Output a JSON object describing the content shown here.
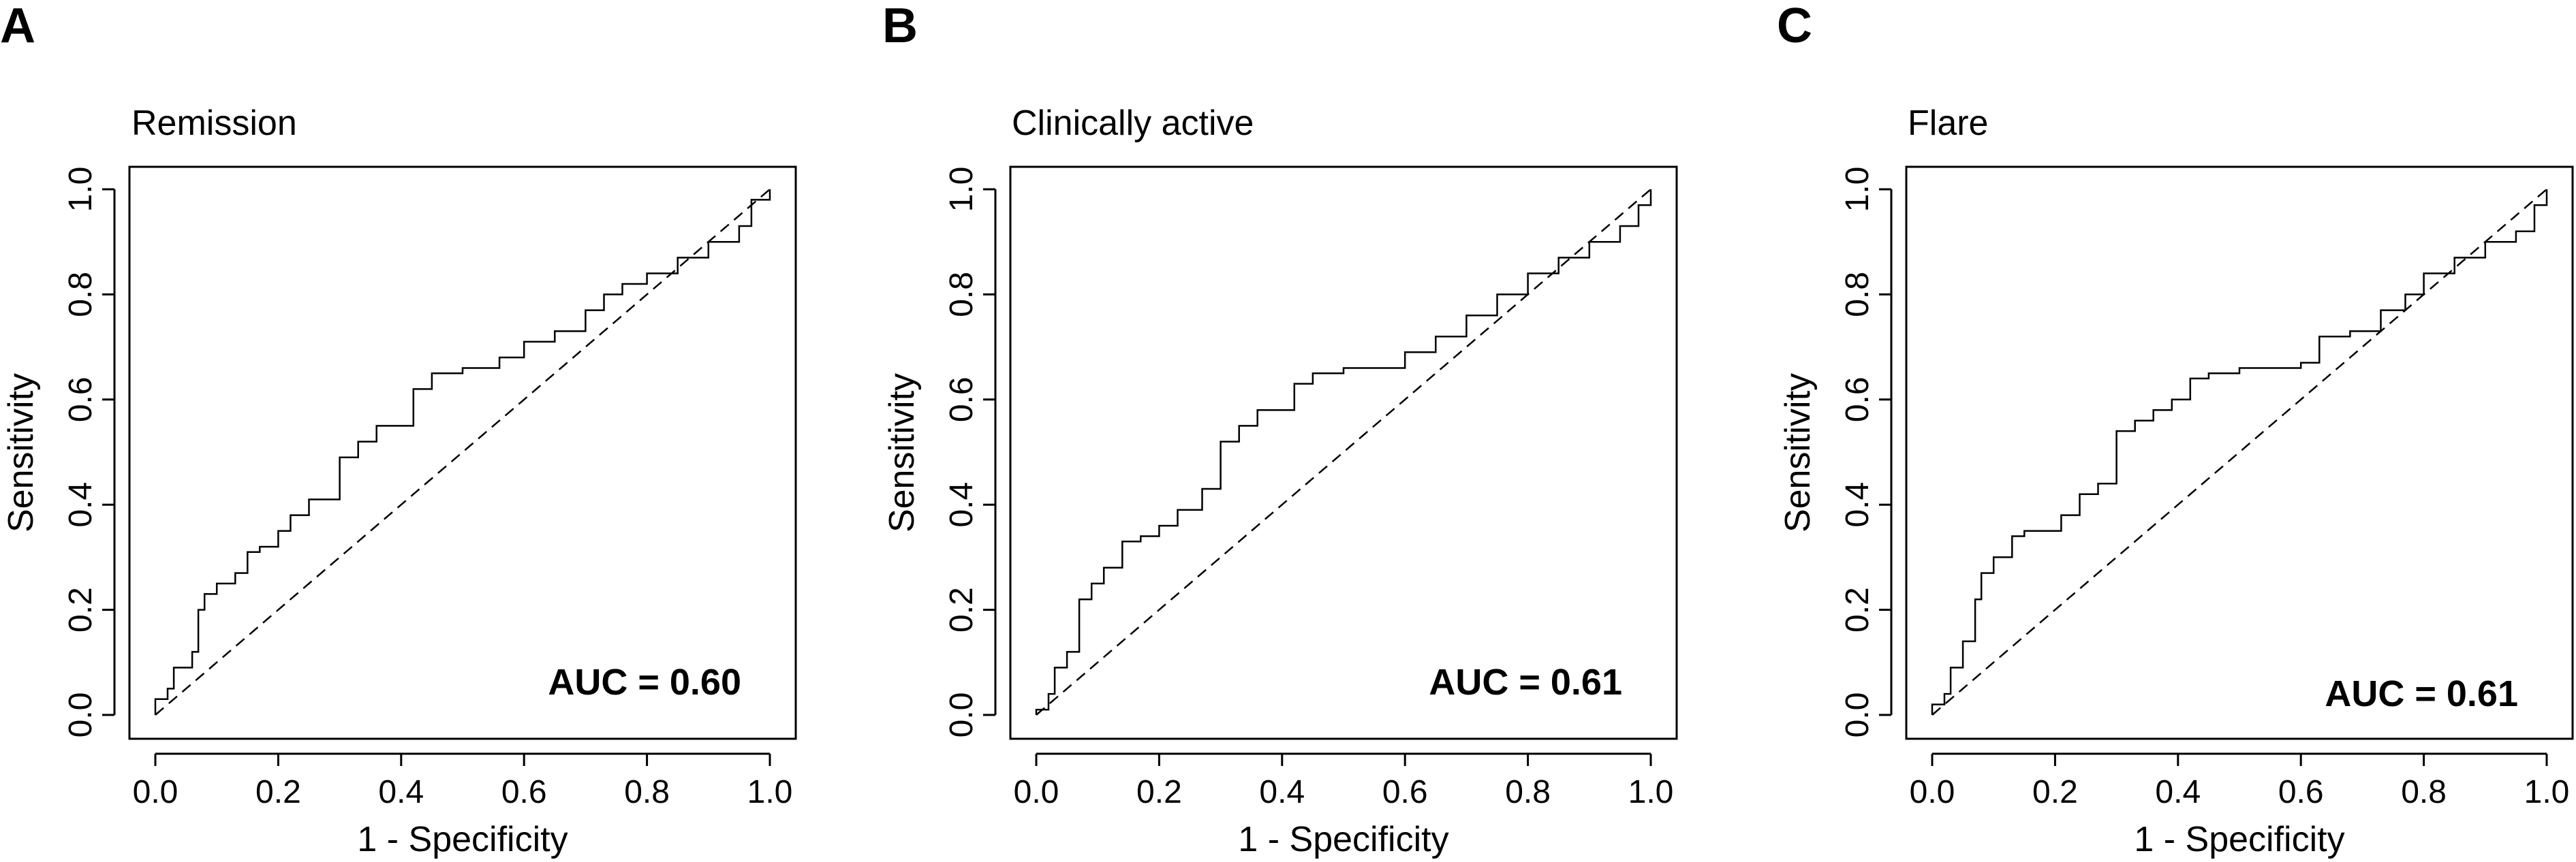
{
  "chart_data": [
    {
      "panel": "A",
      "type": "line",
      "title": "Remission",
      "xlabel": "1 - Specificity",
      "ylabel": "Sensitivity",
      "xlim": [
        0,
        1
      ],
      "ylim": [
        0,
        1
      ],
      "xticks": [
        "0.0",
        "0.2",
        "0.4",
        "0.6",
        "0.8",
        "1.0"
      ],
      "yticks": [
        "0.0",
        "0.2",
        "0.4",
        "0.6",
        "0.8",
        "1.0"
      ],
      "annotation": "AUC = 0.60",
      "reference_line": "diagonal-dashed",
      "x": [
        0.0,
        0.0,
        0.02,
        0.03,
        0.06,
        0.07,
        0.08,
        0.1,
        0.13,
        0.15,
        0.17,
        0.2,
        0.22,
        0.25,
        0.29,
        0.3,
        0.33,
        0.36,
        0.4,
        0.42,
        0.45,
        0.5,
        0.52,
        0.56,
        0.6,
        0.65,
        0.7,
        0.73,
        0.76,
        0.8,
        0.85,
        0.9,
        0.95,
        0.97,
        1.0
      ],
      "y": [
        0.0,
        0.03,
        0.05,
        0.09,
        0.12,
        0.2,
        0.23,
        0.25,
        0.27,
        0.31,
        0.32,
        0.35,
        0.38,
        0.41,
        0.41,
        0.49,
        0.52,
        0.55,
        0.55,
        0.62,
        0.65,
        0.66,
        0.66,
        0.68,
        0.71,
        0.73,
        0.77,
        0.8,
        0.82,
        0.84,
        0.87,
        0.9,
        0.93,
        0.98,
        1.0
      ]
    },
    {
      "panel": "B",
      "type": "line",
      "title": "Clinically active",
      "xlabel": "1 - Specificity",
      "ylabel": "Sensitivity",
      "xlim": [
        0,
        1
      ],
      "ylim": [
        0,
        1
      ],
      "xticks": [
        "0.0",
        "0.2",
        "0.4",
        "0.6",
        "0.8",
        "1.0"
      ],
      "yticks": [
        "0.0",
        "0.2",
        "0.4",
        "0.6",
        "0.8",
        "1.0"
      ],
      "annotation": "AUC = 0.61",
      "reference_line": "diagonal-dashed",
      "x": [
        0.0,
        0.0,
        0.02,
        0.03,
        0.05,
        0.07,
        0.07,
        0.09,
        0.11,
        0.14,
        0.17,
        0.2,
        0.23,
        0.27,
        0.3,
        0.3,
        0.33,
        0.36,
        0.4,
        0.42,
        0.45,
        0.5,
        0.55,
        0.6,
        0.65,
        0.7,
        0.75,
        0.8,
        0.85,
        0.9,
        0.95,
        0.98,
        1.0
      ],
      "y": [
        0.0,
        0.01,
        0.04,
        0.09,
        0.12,
        0.15,
        0.22,
        0.25,
        0.28,
        0.33,
        0.34,
        0.36,
        0.39,
        0.43,
        0.44,
        0.52,
        0.55,
        0.58,
        0.58,
        0.63,
        0.65,
        0.66,
        0.66,
        0.69,
        0.72,
        0.76,
        0.8,
        0.84,
        0.87,
        0.9,
        0.93,
        0.97,
        1.0
      ]
    },
    {
      "panel": "C",
      "type": "line",
      "title": "Flare",
      "xlabel": "1 - Specificity",
      "ylabel": "Sensitivity",
      "xlim": [
        0,
        1
      ],
      "ylim": [
        0,
        1
      ],
      "xticks": [
        "0.0",
        "0.2",
        "0.4",
        "0.6",
        "0.8",
        "1.0"
      ],
      "yticks": [
        "0.0",
        "0.2",
        "0.4",
        "0.6",
        "0.8",
        "1.0"
      ],
      "annotation": "AUC = 0.61",
      "reference_line": "diagonal-dashed",
      "x": [
        0.0,
        0.0,
        0.02,
        0.03,
        0.05,
        0.07,
        0.08,
        0.1,
        0.13,
        0.15,
        0.18,
        0.21,
        0.24,
        0.27,
        0.29,
        0.3,
        0.33,
        0.36,
        0.39,
        0.42,
        0.45,
        0.5,
        0.55,
        0.6,
        0.63,
        0.68,
        0.73,
        0.77,
        0.8,
        0.85,
        0.9,
        0.95,
        0.98,
        1.0
      ],
      "y": [
        0.0,
        0.02,
        0.04,
        0.09,
        0.14,
        0.22,
        0.27,
        0.3,
        0.34,
        0.35,
        0.35,
        0.38,
        0.42,
        0.44,
        0.44,
        0.54,
        0.56,
        0.58,
        0.6,
        0.64,
        0.65,
        0.66,
        0.66,
        0.67,
        0.72,
        0.73,
        0.77,
        0.8,
        0.84,
        0.87,
        0.9,
        0.92,
        0.97,
        1.0
      ]
    }
  ]
}
